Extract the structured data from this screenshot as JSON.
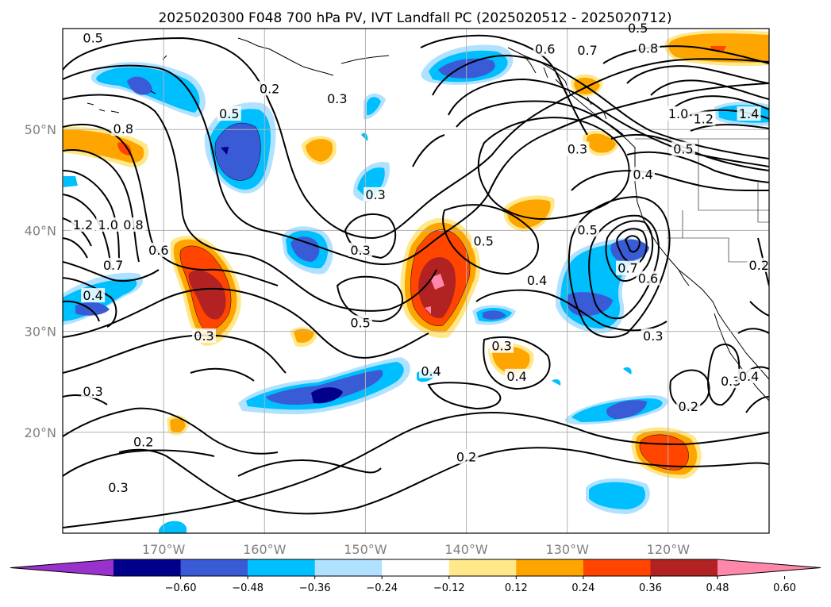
{
  "title": "2025020300 F048 700 hPa PV, IVT Landfall PC (2025020512 - 2025020712)",
  "map": {
    "lon_range": [
      -180,
      -110
    ],
    "lat_range": [
      10,
      60
    ],
    "lat_ticks": [
      {
        "lat": 50,
        "label": "50°N"
      },
      {
        "lat": 40,
        "label": "40°N"
      },
      {
        "lat": 30,
        "label": "30°N"
      },
      {
        "lat": 20,
        "label": "20°N"
      }
    ],
    "lon_ticks": [
      {
        "lon": -170,
        "label": "170°W"
      },
      {
        "lon": -160,
        "label": "160°W"
      },
      {
        "lon": -150,
        "label": "150°W"
      },
      {
        "lon": -140,
        "label": "140°W"
      },
      {
        "lon": -130,
        "label": "130°W"
      },
      {
        "lon": -120,
        "label": "120°W"
      }
    ],
    "grid_lines": true
  },
  "colorbar": {
    "orientation": "horizontal",
    "extend": "both",
    "tick_labels": [
      "−0.60",
      "−0.48",
      "−0.36",
      "−0.24",
      "−0.12",
      "0.12",
      "0.24",
      "0.36",
      "0.48",
      "0.60"
    ],
    "colors": [
      "#9932cc",
      "#00008b",
      "#3a5bd6",
      "#00bfff",
      "#b0e2ff",
      "#ffffff",
      "#ffe88a",
      "#ffa500",
      "#ff4500",
      "#b22222",
      "#ff88aa"
    ]
  },
  "contour_labels": [
    {
      "text": "0.5",
      "lon": -177,
      "lat": 59
    },
    {
      "text": "0.5",
      "lon": -163.5,
      "lat": 51.5
    },
    {
      "text": "0.8",
      "lon": -174,
      "lat": 50
    },
    {
      "text": "1.2",
      "lon": -178,
      "lat": 40.5
    },
    {
      "text": "1.0",
      "lon": -175.5,
      "lat": 40.5
    },
    {
      "text": "0.8",
      "lon": -173,
      "lat": 40.5
    },
    {
      "text": "0.7",
      "lon": -175,
      "lat": 36.5
    },
    {
      "text": "0.6",
      "lon": -170.5,
      "lat": 38
    },
    {
      "text": "0.4",
      "lon": -177,
      "lat": 33.5
    },
    {
      "text": "0.2",
      "lon": -159.5,
      "lat": 54
    },
    {
      "text": "0.3",
      "lon": -152.8,
      "lat": 53
    },
    {
      "text": "0.3",
      "lon": -149,
      "lat": 43.5
    },
    {
      "text": "0.3",
      "lon": -150.5,
      "lat": 38
    },
    {
      "text": "0.5",
      "lon": -150.5,
      "lat": 30.8
    },
    {
      "text": "0.3",
      "lon": -166,
      "lat": 29.5
    },
    {
      "text": "0.3",
      "lon": -177,
      "lat": 24
    },
    {
      "text": "0.2",
      "lon": -172,
      "lat": 19
    },
    {
      "text": "0.3",
      "lon": -174.5,
      "lat": 14.5
    },
    {
      "text": "0.5",
      "lon": -138.3,
      "lat": 38.9
    },
    {
      "text": "0.4",
      "lon": -133,
      "lat": 35
    },
    {
      "text": "0.3",
      "lon": -136.5,
      "lat": 28.5
    },
    {
      "text": "0.4",
      "lon": -143.5,
      "lat": 26
    },
    {
      "text": "0.4",
      "lon": -135,
      "lat": 25.5
    },
    {
      "text": "0.2",
      "lon": -140,
      "lat": 17.5
    },
    {
      "text": "0.6",
      "lon": -132.2,
      "lat": 57.9
    },
    {
      "text": "0.7",
      "lon": -128,
      "lat": 57.8
    },
    {
      "text": "0.8",
      "lon": -122,
      "lat": 58
    },
    {
      "text": "0.5",
      "lon": -123,
      "lat": 60
    },
    {
      "text": "1.0",
      "lon": -119,
      "lat": 51.5
    },
    {
      "text": "1.2",
      "lon": -116.5,
      "lat": 51
    },
    {
      "text": "1.4",
      "lon": -112,
      "lat": 51.5
    },
    {
      "text": "0.3",
      "lon": -129,
      "lat": 48
    },
    {
      "text": "0.5",
      "lon": -118.5,
      "lat": 48
    },
    {
      "text": "0.4",
      "lon": -122.5,
      "lat": 45.5
    },
    {
      "text": "0.5",
      "lon": -128,
      "lat": 40
    },
    {
      "text": "0.7",
      "lon": -124,
      "lat": 36.2
    },
    {
      "text": "0.6",
      "lon": -122,
      "lat": 35.2
    },
    {
      "text": "0.3",
      "lon": -121.5,
      "lat": 29.5
    },
    {
      "text": "0.2",
      "lon": -118,
      "lat": 22.5
    },
    {
      "text": "0.3",
      "lon": -113.8,
      "lat": 25
    },
    {
      "text": "0.4",
      "lon": -112,
      "lat": 25.5
    },
    {
      "text": "0.2",
      "lon": -111,
      "lat": 36.5
    }
  ]
}
